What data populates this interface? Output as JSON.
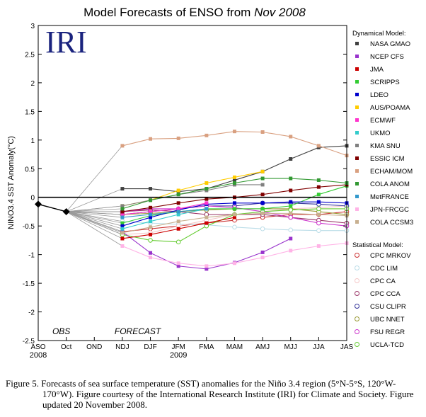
{
  "chart_data": {
    "type": "line",
    "title": "Model Forecasts of ENSO from",
    "title_italic": "Nov 2008",
    "ylabel": "NINO3.4 SST Anomaly(°C)",
    "ylim": [
      -2.5,
      3
    ],
    "yticks": [
      -2.5,
      -2,
      -1.5,
      -1,
      -0.5,
      0,
      0.5,
      1,
      1.5,
      2,
      2.5,
      3
    ],
    "ytick_labels": [
      "-2.5",
      "-2",
      "-1.5",
      "-1",
      "-0.5",
      "0",
      "0.5",
      "1",
      "1.5",
      "2",
      "2.5",
      "3"
    ],
    "categories": [
      "ASO",
      "Oct",
      "OND",
      "NDJ",
      "DJF",
      "JFM",
      "FMA",
      "MAM",
      "AMJ",
      "MJJ",
      "JJA",
      "JAS"
    ],
    "year_labels": [
      {
        "label": "2008",
        "at": 0
      },
      {
        "label": "2009",
        "at": 5
      }
    ],
    "obs_label": "OBS",
    "forecast_label": "FORECAST",
    "logo_text": "IRI",
    "obs": {
      "x": [
        0,
        1
      ],
      "values": [
        -0.12,
        -0.25
      ]
    },
    "legend": {
      "placement": "right",
      "dynamical_title": "Dynamical Model:",
      "statistical_title": "Statistical Model:"
    },
    "dynamical_series": [
      {
        "name": "NASA GMAO",
        "color": "#404040",
        "values": [
          0.15,
          0.15,
          0.1,
          0.15,
          0.3,
          0.45,
          0.67,
          0.87,
          0.9
        ]
      },
      {
        "name": "NCEP CFS",
        "color": "#9933cc",
        "values": [
          -0.6,
          -0.97,
          -1.2,
          -1.25,
          -1.14,
          -0.96,
          -0.72,
          null,
          null
        ]
      },
      {
        "name": "JMA",
        "color": "#cc0000",
        "values": [
          -0.72,
          -0.65,
          -0.55,
          -0.45,
          -0.35,
          null,
          null,
          null,
          null
        ]
      },
      {
        "name": "SCRIPPS",
        "color": "#33cc33",
        "values": [
          -0.45,
          -0.32,
          -0.25,
          -0.2,
          -0.2,
          -0.2,
          -0.15,
          0.05,
          0.2
        ]
      },
      {
        "name": "LDEO",
        "color": "#0000cc",
        "values": [
          -0.5,
          -0.35,
          -0.22,
          -0.12,
          -0.1,
          -0.1,
          -0.08,
          -0.08,
          -0.1
        ]
      },
      {
        "name": "AUS/POAMA",
        "color": "#ffcc00",
        "values": [
          -0.15,
          -0.05,
          0.12,
          0.25,
          0.35,
          0.45,
          null,
          null,
          null
        ]
      },
      {
        "name": "ECMWF",
        "color": "#ff33cc",
        "values": [
          -0.3,
          -0.25,
          -0.2,
          -0.1,
          null,
          null,
          null,
          null,
          null
        ]
      },
      {
        "name": "UKMO",
        "color": "#33cccc",
        "values": [
          -0.55,
          -0.42,
          -0.3,
          -0.2,
          null,
          null,
          null,
          null,
          null
        ]
      },
      {
        "name": "KMA SNU",
        "color": "#808080",
        "values": [
          -0.15,
          -0.05,
          0.05,
          0.12,
          0.22,
          0.22,
          null,
          null,
          null
        ]
      },
      {
        "name": "ESSIC ICM",
        "color": "#800000",
        "values": [
          -0.25,
          -0.18,
          -0.1,
          -0.03,
          0.0,
          0.05,
          0.12,
          0.18,
          0.22
        ]
      },
      {
        "name": "ECHAM/MOM",
        "color": "#d9a080",
        "values": [
          0.9,
          1.02,
          1.03,
          1.08,
          1.15,
          1.14,
          1.06,
          0.9,
          0.73
        ]
      },
      {
        "name": "COLA ANOM",
        "color": "#339933",
        "values": [
          -0.2,
          -0.05,
          0.05,
          0.15,
          0.25,
          0.33,
          0.33,
          0.3,
          0.25
        ]
      },
      {
        "name": "MetFRANCE",
        "color": "#3399cc",
        "values": [
          -0.35,
          -0.3,
          -0.25,
          -0.2,
          null,
          null,
          null,
          null,
          null
        ]
      },
      {
        "name": "JPN-FRCGC",
        "color": "#ffb3e6",
        "values": [
          -0.85,
          -1.05,
          -1.15,
          -1.2,
          -1.15,
          -1.05,
          -0.93,
          -0.85,
          -0.8
        ]
      },
      {
        "name": "COLA CCSM3",
        "color": "#c8b090",
        "values": [
          -0.62,
          -0.52,
          -0.42,
          -0.35,
          -0.3,
          -0.28,
          -0.28,
          -0.3,
          -0.32
        ]
      }
    ],
    "statistical_series": [
      {
        "name": "CPC MRKOV",
        "color": "#cc3333",
        "values": [
          -0.6,
          -0.55,
          -0.5,
          -0.45,
          -0.4,
          -0.35,
          -0.3,
          -0.3,
          -0.25
        ]
      },
      {
        "name": "CDC LIM",
        "color": "#bbdde8",
        "values": [
          -0.42,
          -0.45,
          -0.47,
          -0.48,
          -0.52,
          -0.55,
          -0.57,
          -0.58,
          -0.58
        ]
      },
      {
        "name": "CPC CA",
        "color": "#f5c8c8",
        "values": [
          -0.65,
          -0.62,
          -0.5,
          -0.4,
          -0.3,
          -0.25,
          -0.2,
          -0.18,
          -0.15
        ]
      },
      {
        "name": "CPC CCA",
        "color": "#993366",
        "values": [
          -0.25,
          -0.22,
          -0.25,
          -0.3,
          -0.3,
          -0.3,
          -0.35,
          -0.4,
          -0.45
        ]
      },
      {
        "name": "CSU CLIPR",
        "color": "#333399",
        "values": [
          -0.3,
          -0.25,
          -0.2,
          -0.15,
          -0.15,
          -0.1,
          -0.1,
          -0.12,
          -0.15
        ]
      },
      {
        "name": "UBC NNET",
        "color": "#999933",
        "values": [
          -0.3,
          -0.28,
          -0.25,
          -0.22,
          -0.2,
          -0.2,
          -0.2,
          -0.25,
          -0.3
        ]
      },
      {
        "name": "FSU REGR",
        "color": "#cc33cc",
        "values": [
          -0.25,
          -0.2,
          -0.2,
          -0.15,
          -0.18,
          -0.25,
          -0.35,
          -0.45,
          -0.5
        ]
      },
      {
        "name": "UCLA-TCD",
        "color": "#66cc33",
        "values": [
          -0.65,
          -0.75,
          -0.78,
          -0.5,
          -0.3,
          -0.25,
          -0.22,
          -0.2,
          -0.2
        ]
      }
    ]
  },
  "caption": {
    "text": "Figure 5. Forecasts of sea surface temperature (SST) anomalies for the Niño 3.4 region (5°N-5°S, 120°W-170°W).  Figure courtesy of the International Research Institute (IRI) for Climate and Society.  Figure updated 20 November 2008."
  }
}
